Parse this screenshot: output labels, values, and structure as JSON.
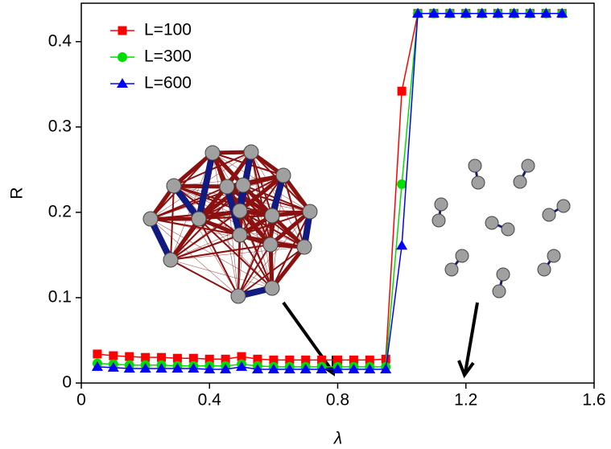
{
  "chart_data": {
    "type": "line",
    "x_label": "λ",
    "y_label": "R",
    "x": [
      0.05,
      0.1,
      0.15,
      0.2,
      0.25,
      0.3,
      0.35,
      0.4,
      0.45,
      0.5,
      0.55,
      0.6,
      0.65,
      0.7,
      0.75,
      0.8,
      0.85,
      0.9,
      0.95,
      1.0,
      1.05,
      1.1,
      1.15,
      1.2,
      1.25,
      1.3,
      1.35,
      1.4,
      1.45,
      1.5
    ],
    "series": [
      {
        "name": "L=100",
        "color": "#ff0000",
        "marker": "square",
        "values": [
          0.034,
          0.032,
          0.031,
          0.03,
          0.03,
          0.029,
          0.029,
          0.028,
          0.028,
          0.031,
          0.028,
          0.027,
          0.027,
          0.027,
          0.027,
          0.027,
          0.027,
          0.027,
          0.028,
          0.342,
          0.433,
          0.433,
          0.433,
          0.433,
          0.433,
          0.433,
          0.433,
          0.433,
          0.433,
          0.433
        ]
      },
      {
        "name": "L=300",
        "color": "#00dd00",
        "marker": "circle",
        "values": [
          0.023,
          0.022,
          0.021,
          0.021,
          0.021,
          0.02,
          0.02,
          0.02,
          0.02,
          0.022,
          0.02,
          0.019,
          0.019,
          0.019,
          0.019,
          0.019,
          0.019,
          0.019,
          0.019,
          0.233,
          0.433,
          0.433,
          0.433,
          0.433,
          0.433,
          0.433,
          0.433,
          0.433,
          0.433,
          0.433
        ]
      },
      {
        "name": "L=600",
        "color": "#0000ff",
        "marker": "triangle",
        "values": [
          0.019,
          0.018,
          0.017,
          0.017,
          0.017,
          0.017,
          0.017,
          0.016,
          0.016,
          0.019,
          0.016,
          0.016,
          0.016,
          0.016,
          0.016,
          0.016,
          0.016,
          0.016,
          0.016,
          0.161,
          0.433,
          0.433,
          0.433,
          0.433,
          0.433,
          0.433,
          0.433,
          0.433,
          0.433,
          0.433
        ]
      }
    ],
    "xlim": [
      0,
      1.6
    ],
    "xticks": [
      0,
      0.4,
      0.8,
      1.2,
      1.6
    ],
    "ylim": [
      0,
      0.445
    ],
    "yticks": [
      0,
      0.1,
      0.2,
      0.3,
      0.4
    ],
    "legend": "upper left"
  }
}
